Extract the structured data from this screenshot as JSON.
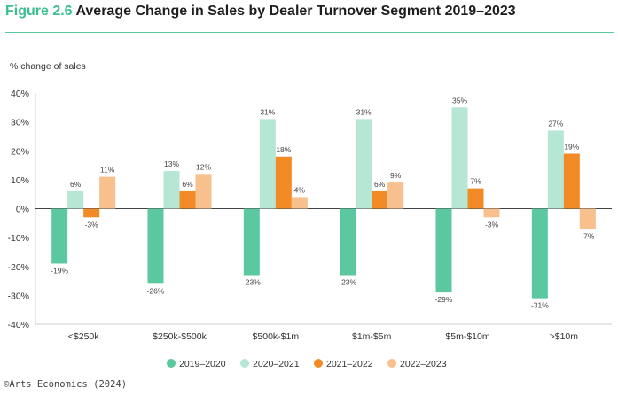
{
  "figure": {
    "number": "Figure 2.6",
    "title": "Average Change in Sales by Dealer Turnover Segment 2019–2023"
  },
  "source": "©Arts Economics (2024)",
  "chart_data": {
    "type": "bar",
    "ylabel": "% change of sales",
    "ylim": [
      -40,
      40
    ],
    "yticks": [
      -40,
      -30,
      -20,
      -10,
      0,
      10,
      20,
      30,
      40
    ],
    "ytick_labels": [
      "-40%",
      "-30%",
      "-20%",
      "-10%",
      "0%",
      "10%",
      "20%",
      "30%",
      "40%"
    ],
    "grid": false,
    "legend": "bottom",
    "categories": [
      "<$250k",
      "$250k-$500k",
      "$500k-$1m",
      "$1m-$5m",
      "$5m-$10m",
      ">$10m"
    ],
    "series": [
      {
        "name": "2019–2020",
        "color": "#5bc8a0",
        "values": [
          -19,
          -26,
          -23,
          -23,
          -29,
          -31
        ],
        "labels": [
          "-19%",
          "-26%",
          "-23%",
          "-23%",
          "-29%",
          "-31%"
        ]
      },
      {
        "name": "2020–2021",
        "color": "#b6e6d4",
        "values": [
          6,
          13,
          31,
          31,
          35,
          27
        ],
        "labels": [
          "6%",
          "13%",
          "31%",
          "31%",
          "35%",
          "27%"
        ]
      },
      {
        "name": "2021–2022",
        "color": "#f28a25",
        "values": [
          -3,
          6,
          18,
          6,
          7,
          19
        ],
        "labels": [
          "-3%",
          "6%",
          "18%",
          "6%",
          "7%",
          "19%"
        ]
      },
      {
        "name": "2022–2023",
        "color": "#f8c08d",
        "values": [
          11,
          12,
          4,
          9,
          -3,
          -7
        ],
        "labels": [
          "11%",
          "12%",
          "4%",
          "9%",
          "-3%",
          "-7%"
        ]
      }
    ]
  }
}
